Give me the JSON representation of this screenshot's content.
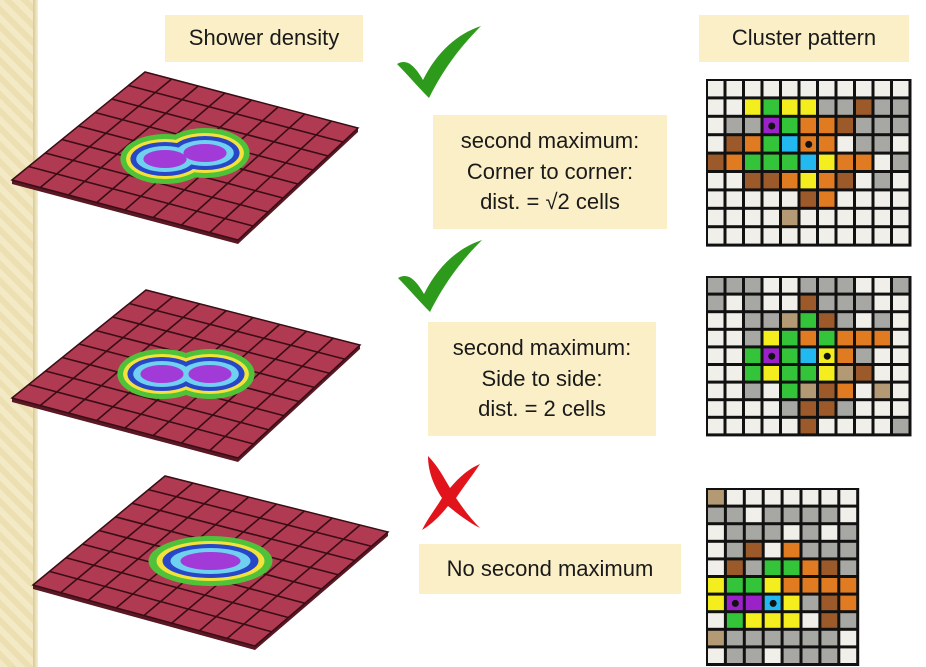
{
  "headers": {
    "shower_density": "Shower density",
    "cluster_pattern": "Cluster pattern"
  },
  "cases": [
    {
      "result": "check",
      "lines": [
        "second maximum:",
        "Corner to corner:",
        "dist. =  √2 cells"
      ]
    },
    {
      "result": "check",
      "lines": [
        "second maximum:",
        "Side to side:",
        "dist. =  2 cells"
      ]
    },
    {
      "result": "cross",
      "lines": [
        "No second maximum"
      ]
    }
  ],
  "colors": {
    "label_bg": "#fbefc7",
    "check": "#2e9a1c",
    "cross": "#e2141b",
    "plane": "#b03a52",
    "plane_grid": "#3a0d15"
  }
}
